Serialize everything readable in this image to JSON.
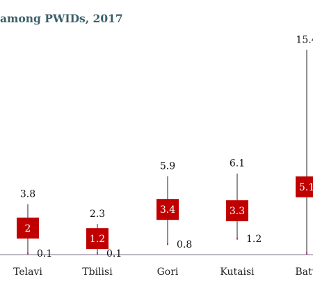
{
  "chart_data": {
    "type": "range",
    "title": "among PWIDs, 2017",
    "categories": [
      "Telavi",
      "Tbilisi",
      "Gori",
      "Kutaisi",
      "Batumi"
    ],
    "category_labels": [
      "Telavi",
      "Tbilisi",
      "Gori",
      "Kutaisi",
      "Batu"
    ],
    "series": [
      {
        "low": [
          0.1,
          0.1,
          0.8,
          1.2,
          0.1
        ]
      },
      {
        "high": [
          3.8,
          2.3,
          5.9,
          6.1,
          15.4
        ]
      },
      {
        "point": [
          2,
          1.2,
          3.4,
          3.3,
          5.1
        ]
      }
    ],
    "low_labels": [
      "0.1",
      "0.1",
      "0.8",
      "1.2",
      ""
    ],
    "high_labels": [
      "3.8",
      "2.3",
      "5.9",
      "6.1",
      "15.4"
    ],
    "point_labels": [
      "2",
      "1.2",
      "3.4",
      "3.3",
      "5.1"
    ],
    "colors": {
      "box": "#c00000",
      "line": "#222222",
      "axis": "#7a6f8a",
      "dot": "#b03a7a",
      "title": "#3c5f6a"
    },
    "xlabel": "",
    "ylabel": "",
    "ylim": [
      0,
      16
    ],
    "grid": false,
    "legend": "none"
  }
}
